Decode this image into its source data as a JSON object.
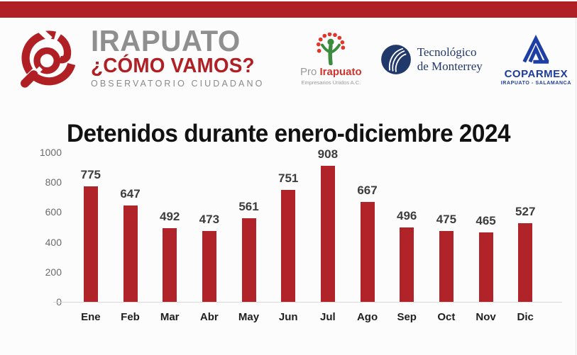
{
  "brand": {
    "name": "IRAPUATO",
    "tagline": "¿CÓMO VAMOS?",
    "subtitle": "OBSERVATORIO CIUDADANO",
    "accent_color": "#AF1F24",
    "gray_color": "#8F8F8F"
  },
  "partners": {
    "pro_irapuato": {
      "prefix": "Pro",
      "name": "Irapuato",
      "subtitle": "Empresarios Unidos A.C."
    },
    "tec_de_monterrey": {
      "line1": "Tecnológico",
      "line2": "de Monterrey"
    },
    "coparmex": {
      "name": "COPARMEX",
      "subtitle": "IRAPUATO - SALAMANCA"
    }
  },
  "title": "Detenidos durante enero-diciembre 2024",
  "chart_data": {
    "type": "bar",
    "categories": [
      "Ene",
      "Feb",
      "Mar",
      "Abr",
      "May",
      "Jun",
      "Jul",
      "Ago",
      "Sep",
      "Oct",
      "Nov",
      "Dic"
    ],
    "values": [
      775,
      647,
      492,
      473,
      561,
      751,
      908,
      667,
      496,
      475,
      465,
      527
    ],
    "title": "Detenidos durante enero-diciembre 2024",
    "xlabel": "",
    "ylabel": "",
    "ylim": [
      0,
      1000
    ],
    "yticks": [
      0,
      200,
      400,
      600,
      800,
      1000
    ],
    "bar_color": "#B02328",
    "value_label_color": "#3D3D3D",
    "axis_label_color": "#6B6B6B",
    "axis_line_color": "#D9D9D9",
    "grid": false,
    "legend": false
  }
}
